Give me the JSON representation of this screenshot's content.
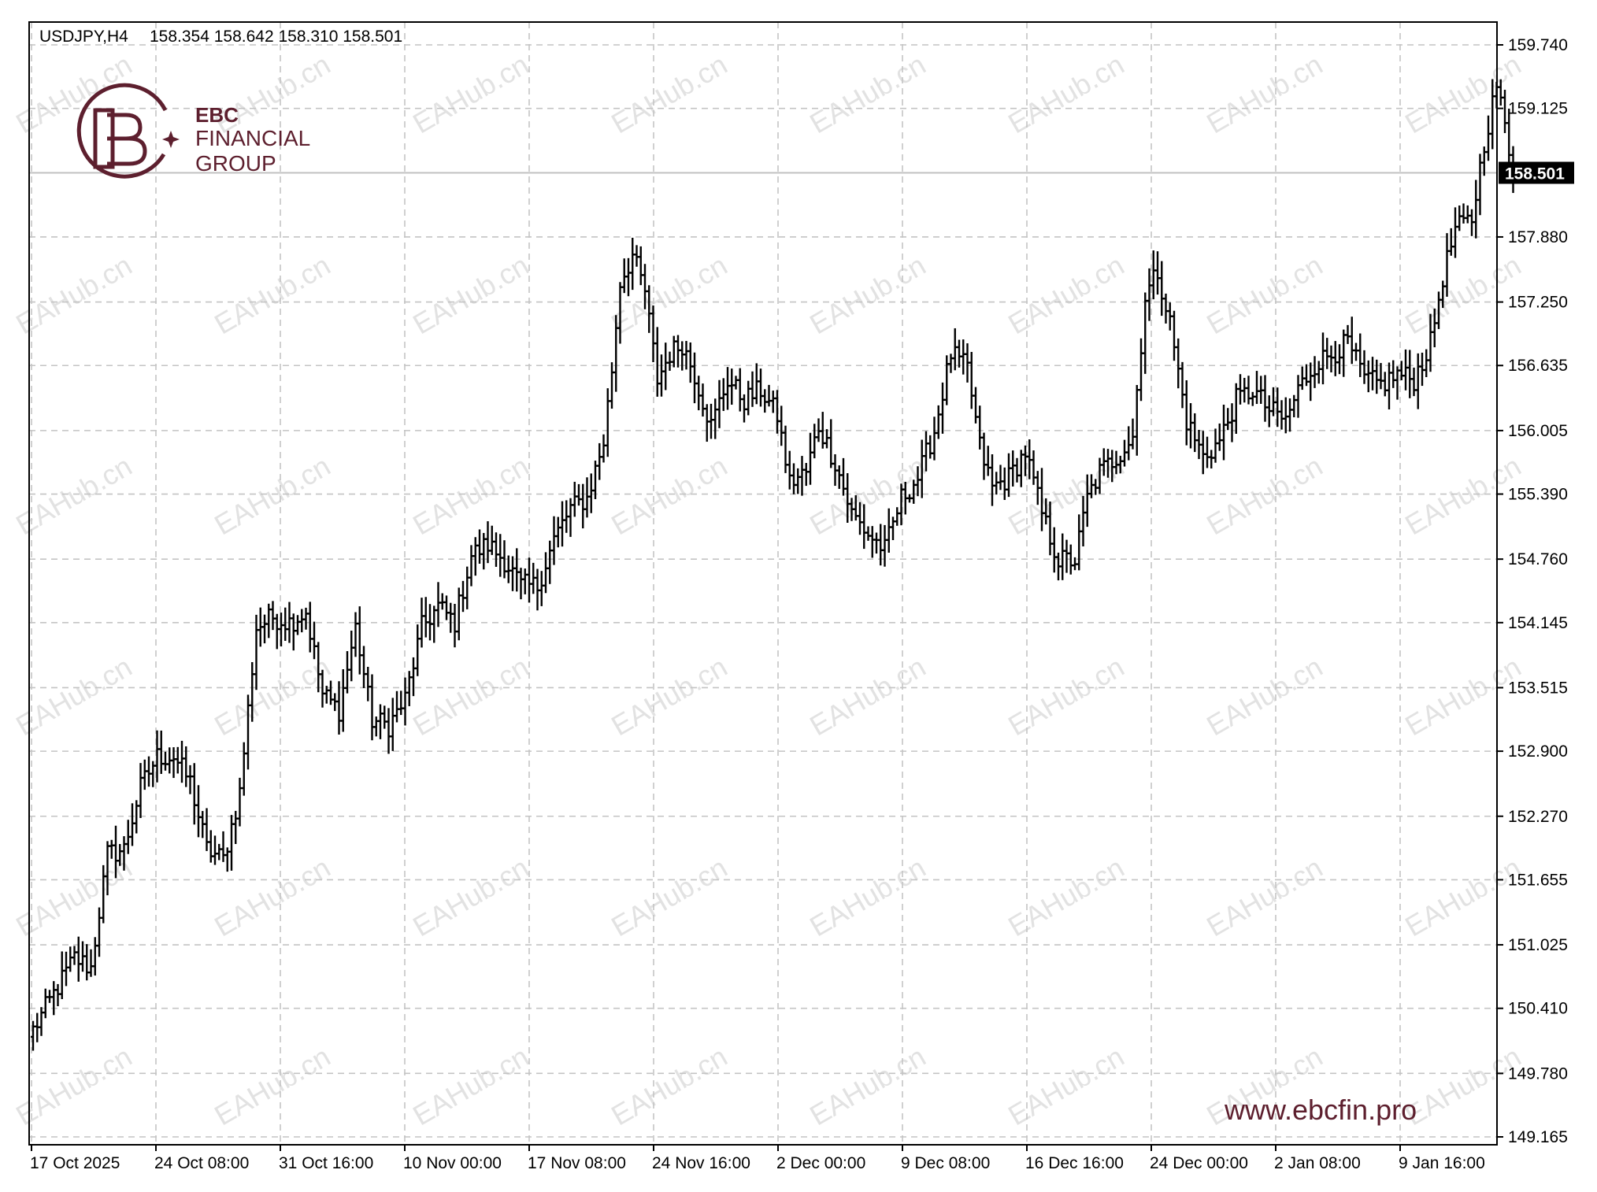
{
  "header": {
    "symbol": "USDJPY,H4",
    "ohlc": "158.354 158.642 158.310 158.501"
  },
  "brand": {
    "line1": "EBC",
    "line2": "FINANCIAL",
    "line3": "GROUP",
    "url": "www.ebcfin.pro",
    "color": "#5d1f2e"
  },
  "watermark": "EAHub.cn",
  "chart_data": {
    "type": "bar",
    "title": "USDJPY,H4",
    "xlabel": "",
    "ylabel": "",
    "grid": true,
    "ylim": [
      149.0,
      160.1
    ],
    "y_ticks": [
      "159.740",
      "159.125",
      "157.880",
      "157.250",
      "156.635",
      "156.005",
      "155.390",
      "154.760",
      "154.145",
      "153.515",
      "152.900",
      "152.270",
      "151.655",
      "151.025",
      "150.410",
      "149.780",
      "149.165"
    ],
    "x_ticks": [
      "17 Oct 2025",
      "24 Oct 08:00",
      "31 Oct 16:00",
      "10 Nov 00:00",
      "17 Nov 08:00",
      "24 Nov 16:00",
      "2 Dec 00:00",
      "9 Dec 08:00",
      "16 Dec 16:00",
      "24 Dec 00:00",
      "2 Jan 08:00",
      "9 Jan 16:00"
    ],
    "last_price": "158.501",
    "last_close": 158.501,
    "anchors": [
      [
        0,
        150.2
      ],
      [
        5,
        150.55
      ],
      [
        10,
        150.9
      ],
      [
        14,
        150.8
      ],
      [
        18,
        151.9
      ],
      [
        22,
        151.95
      ],
      [
        26,
        152.55
      ],
      [
        30,
        152.85
      ],
      [
        34,
        152.85
      ],
      [
        38,
        152.6
      ],
      [
        42,
        151.95
      ],
      [
        46,
        151.85
      ],
      [
        50,
        152.5
      ],
      [
        54,
        154.1
      ],
      [
        58,
        154.2
      ],
      [
        62,
        154.15
      ],
      [
        66,
        154.25
      ],
      [
        70,
        153.45
      ],
      [
        74,
        153.3
      ],
      [
        78,
        154.1
      ],
      [
        82,
        153.2
      ],
      [
        86,
        153.15
      ],
      [
        90,
        153.4
      ],
      [
        94,
        154.1
      ],
      [
        98,
        154.3
      ],
      [
        102,
        154.15
      ],
      [
        106,
        154.8
      ],
      [
        110,
        154.9
      ],
      [
        114,
        154.75
      ],
      [
        118,
        154.5
      ],
      [
        122,
        154.5
      ],
      [
        126,
        154.95
      ],
      [
        130,
        155.25
      ],
      [
        134,
        155.35
      ],
      [
        138,
        155.9
      ],
      [
        140,
        156.6
      ],
      [
        142,
        157.45
      ],
      [
        145,
        157.7
      ],
      [
        148,
        157.35
      ],
      [
        151,
        156.5
      ],
      [
        154,
        156.75
      ],
      [
        157,
        156.85
      ],
      [
        160,
        156.55
      ],
      [
        164,
        156.05
      ],
      [
        168,
        156.5
      ],
      [
        172,
        156.3
      ],
      [
        176,
        156.4
      ],
      [
        180,
        156.15
      ],
      [
        183,
        155.5
      ],
      [
        187,
        155.6
      ],
      [
        190,
        156.05
      ],
      [
        194,
        155.7
      ],
      [
        198,
        155.2
      ],
      [
        202,
        155.0
      ],
      [
        206,
        154.85
      ],
      [
        210,
        155.35
      ],
      [
        214,
        155.55
      ],
      [
        218,
        156.0
      ],
      [
        222,
        156.75
      ],
      [
        226,
        156.6
      ],
      [
        229,
        155.85
      ],
      [
        232,
        155.45
      ],
      [
        236,
        155.55
      ],
      [
        240,
        155.8
      ],
      [
        244,
        155.2
      ],
      [
        248,
        154.75
      ],
      [
        252,
        154.75
      ],
      [
        255,
        155.35
      ],
      [
        258,
        155.6
      ],
      [
        262,
        155.75
      ],
      [
        266,
        155.95
      ],
      [
        269,
        157.3
      ],
      [
        272,
        157.55
      ],
      [
        275,
        157.05
      ],
      [
        279,
        156.1
      ],
      [
        283,
        155.75
      ],
      [
        287,
        155.9
      ],
      [
        291,
        156.3
      ],
      [
        295,
        156.4
      ],
      [
        299,
        156.2
      ],
      [
        303,
        156.1
      ],
      [
        306,
        156.4
      ],
      [
        310,
        156.65
      ],
      [
        314,
        156.75
      ],
      [
        318,
        156.85
      ],
      [
        322,
        156.5
      ],
      [
        326,
        156.45
      ],
      [
        330,
        156.55
      ],
      [
        334,
        156.5
      ],
      [
        338,
        156.85
      ],
      [
        341,
        157.5
      ],
      [
        344,
        157.95
      ],
      [
        348,
        158.05
      ],
      [
        351,
        158.8
      ],
      [
        354,
        159.35
      ],
      [
        356,
        158.95
      ],
      [
        358,
        158.501
      ]
    ]
  }
}
